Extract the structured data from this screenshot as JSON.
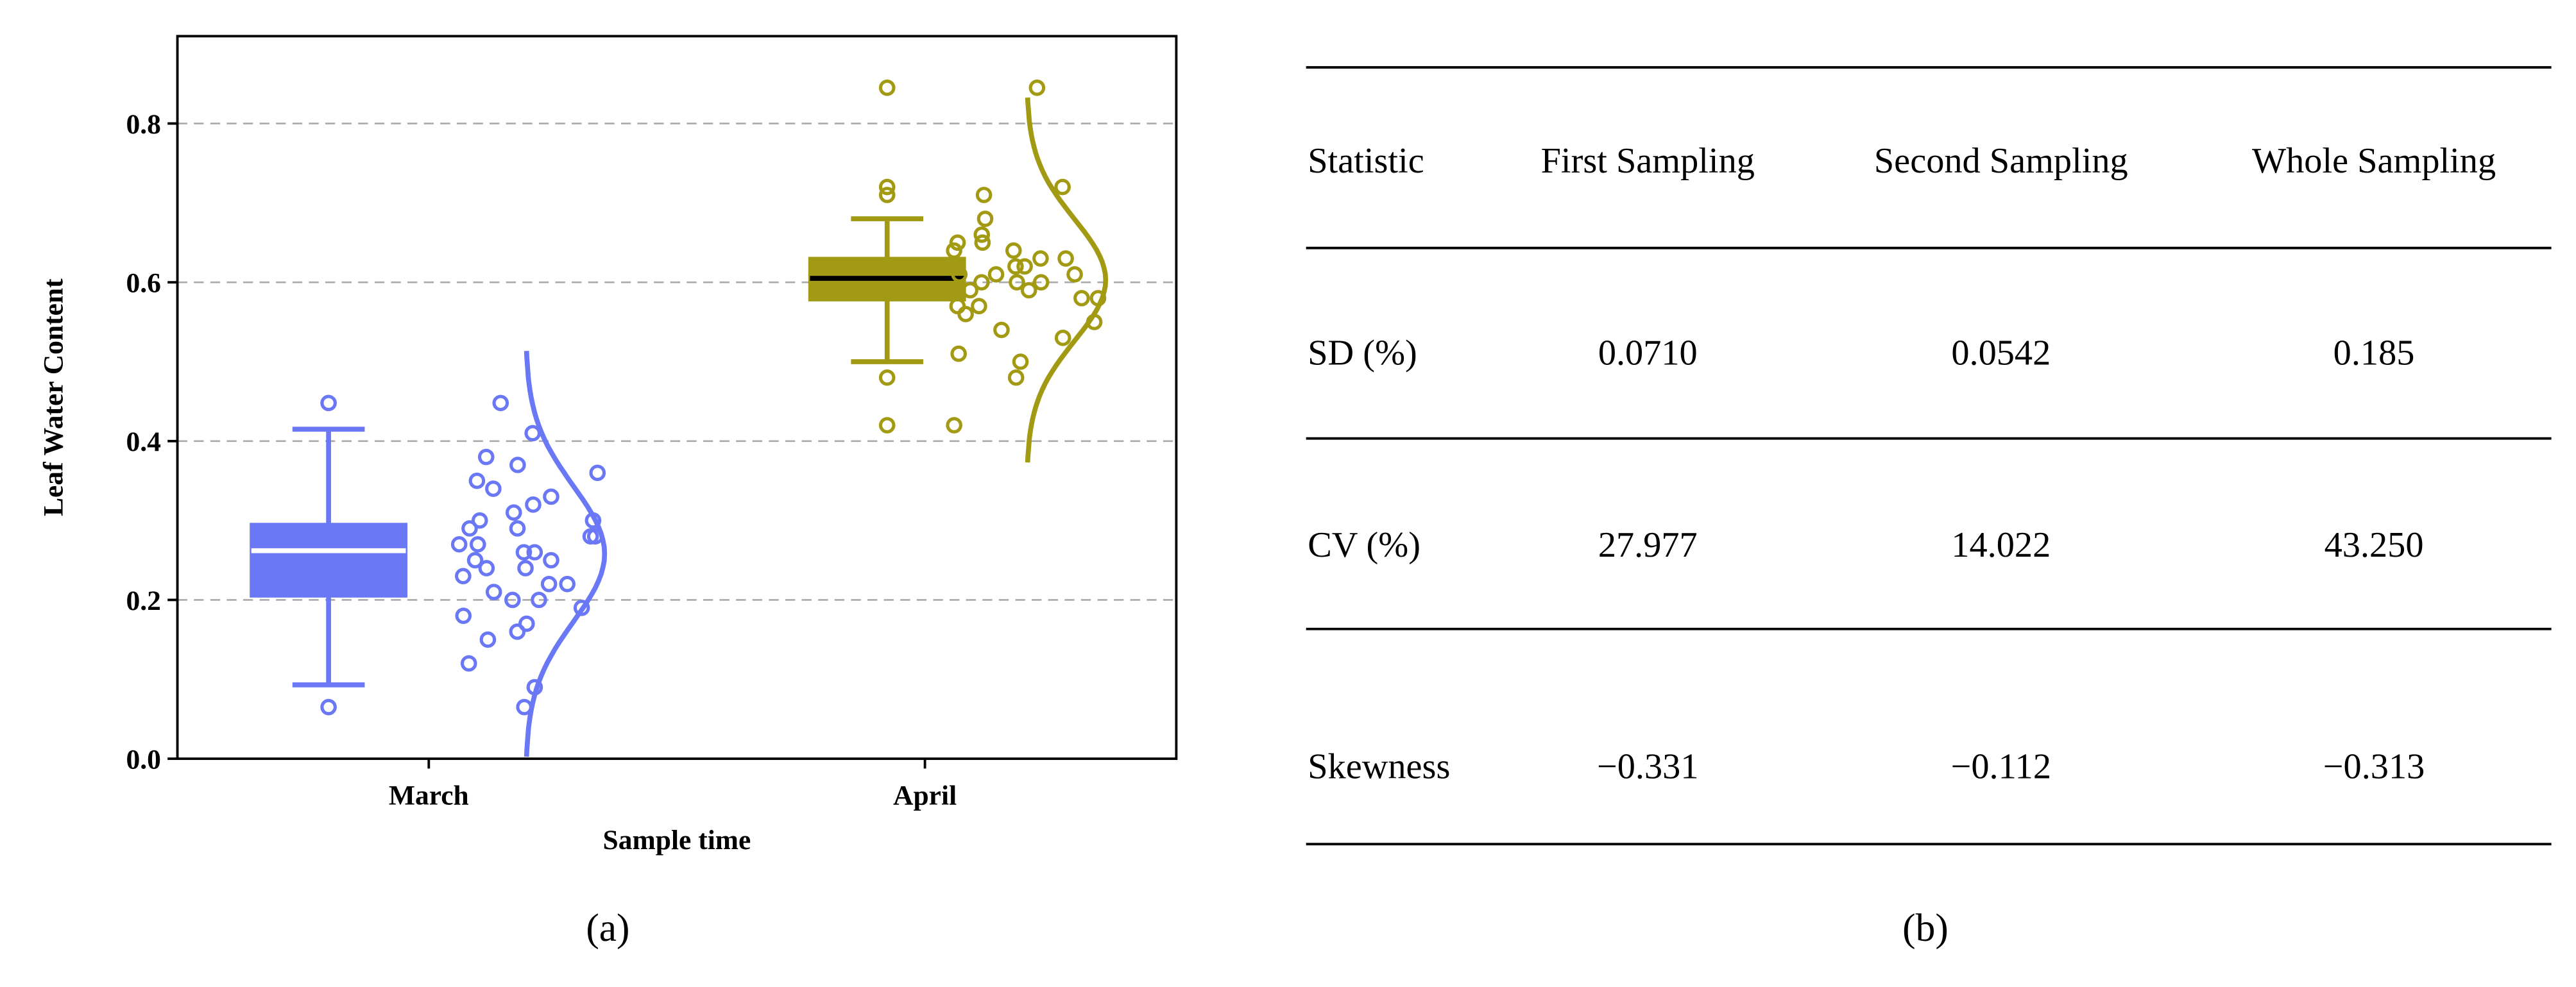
{
  "chart_data": {
    "type": "box",
    "xlabel": "Sample time",
    "ylabel": "Leaf Water Content",
    "categories": [
      "March",
      "April"
    ],
    "ylim": [
      0,
      0.91
    ],
    "yticks": [
      {
        "value": 0,
        "label": "0.0"
      },
      0.2,
      0.4,
      0.6,
      0.8
    ],
    "grid": true,
    "boxes": [
      {
        "color": "#6a78f5",
        "median_color": "#ffffff",
        "whislo": 0.093,
        "q1": 0.205,
        "med": 0.262,
        "q3": 0.295,
        "whishi": 0.415,
        "fliers": [
          0.065,
          0.448
        ],
        "points": [
          0.065,
          0.09,
          0.12,
          0.15,
          0.16,
          0.17,
          0.18,
          0.19,
          0.2,
          0.2,
          0.21,
          0.22,
          0.22,
          0.23,
          0.24,
          0.24,
          0.25,
          0.25,
          0.26,
          0.26,
          0.27,
          0.27,
          0.28,
          0.28,
          0.29,
          0.29,
          0.3,
          0.3,
          0.31,
          0.32,
          0.33,
          0.34,
          0.35,
          0.36,
          0.37,
          0.38,
          0.41,
          0.448
        ]
      },
      {
        "color": "#a39a14",
        "median_color": "#000000",
        "whislo": 0.5,
        "q1": 0.578,
        "med": 0.605,
        "q3": 0.63,
        "whishi": 0.68,
        "fliers": [
          0.42,
          0.48,
          0.71,
          0.72,
          0.845
        ],
        "points": [
          0.42,
          0.48,
          0.5,
          0.51,
          0.53,
          0.54,
          0.55,
          0.56,
          0.57,
          0.57,
          0.58,
          0.58,
          0.59,
          0.59,
          0.6,
          0.6,
          0.6,
          0.61,
          0.61,
          0.61,
          0.62,
          0.62,
          0.63,
          0.63,
          0.64,
          0.64,
          0.65,
          0.65,
          0.66,
          0.68,
          0.71,
          0.72,
          0.845
        ]
      }
    ]
  },
  "panel_labels": [
    "(a)",
    "(b)"
  ],
  "table": {
    "header": [
      "Statistic",
      "First Sampling",
      "Second Sampling",
      "Whole Sampling"
    ],
    "rows": [
      [
        "SD (%)",
        "0.0710",
        "0.0542",
        "0.185"
      ],
      [
        "CV (%)",
        "27.977",
        "14.022",
        "43.250"
      ],
      [
        "Skewness",
        "−0.331",
        "−0.112",
        "−0.313"
      ]
    ]
  }
}
